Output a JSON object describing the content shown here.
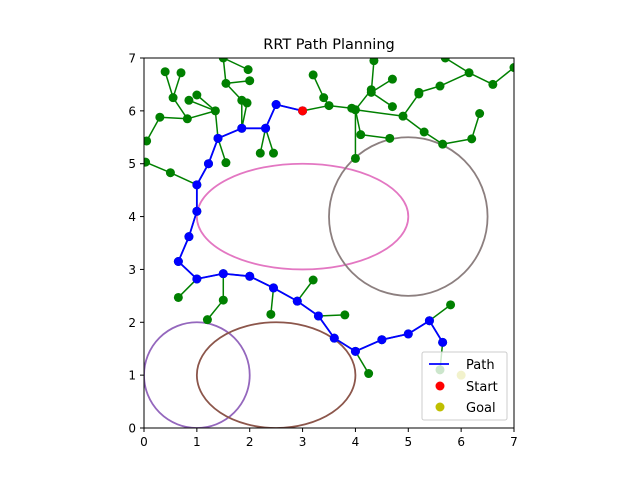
{
  "chart_data": {
    "type": "scatter",
    "title": "RRT Path Planning",
    "xlabel": "",
    "ylabel": "",
    "xlim": [
      0,
      7
    ],
    "ylim": [
      0,
      7
    ],
    "xticks": [
      "0",
      "1",
      "2",
      "3",
      "4",
      "5",
      "6",
      "7"
    ],
    "yticks": [
      "0",
      "1",
      "2",
      "3",
      "4",
      "5",
      "6",
      "7"
    ],
    "grid": false,
    "legend_position": "lower-right",
    "legend": [
      {
        "label": "Path",
        "kind": "line",
        "color": "#0000ff"
      },
      {
        "label": "Start",
        "kind": "marker",
        "color": "#ff0000"
      },
      {
        "label": "Goal",
        "kind": "marker",
        "color": "#bfbf00"
      }
    ],
    "obstacles": [
      {
        "shape": "ellipse",
        "cx": 3.0,
        "cy": 4.0,
        "rx": 2.0,
        "ry": 1.0,
        "color": "#e377c2"
      },
      {
        "shape": "circle",
        "cx": 5.0,
        "cy": 4.0,
        "rx": 1.5,
        "ry": 1.5,
        "color": "#8c7f7f"
      },
      {
        "shape": "circle",
        "cx": 1.0,
        "cy": 1.0,
        "rx": 1.0,
        "ry": 1.0,
        "color": "#9467bd"
      },
      {
        "shape": "ellipse",
        "cx": 2.5,
        "cy": 1.0,
        "rx": 1.5,
        "ry": 1.0,
        "color": "#8c564b"
      }
    ],
    "tree_color": "#008000",
    "path_color": "#0000ff",
    "tree_nodes": [
      [
        3.0,
        6.0
      ],
      [
        2.5,
        6.12
      ],
      [
        3.5,
        6.1
      ],
      [
        3.2,
        6.68
      ],
      [
        3.4,
        6.25
      ],
      [
        3.93,
        6.05
      ],
      [
        4.0,
        6.02
      ],
      [
        4.3,
        6.4
      ],
      [
        4.3,
        6.35
      ],
      [
        4.35,
        6.95
      ],
      [
        4.7,
        6.6
      ],
      [
        4.7,
        6.08
      ],
      [
        4.1,
        5.55
      ],
      [
        4.65,
        5.48
      ],
      [
        4.0,
        5.1
      ],
      [
        4.9,
        5.9
      ],
      [
        5.2,
        6.32
      ],
      [
        5.2,
        6.35
      ],
      [
        5.3,
        5.6
      ],
      [
        5.6,
        6.47
      ],
      [
        5.65,
        5.37
      ],
      [
        5.7,
        7.0
      ],
      [
        6.15,
        6.72
      ],
      [
        6.6,
        6.5
      ],
      [
        7.0,
        6.82
      ],
      [
        6.2,
        5.47
      ],
      [
        6.35,
        5.95
      ],
      [
        2.3,
        5.67
      ],
      [
        2.45,
        5.2
      ],
      [
        2.2,
        5.2
      ],
      [
        1.85,
        5.67
      ],
      [
        1.85,
        6.2
      ],
      [
        1.95,
        6.15
      ],
      [
        1.55,
        6.52
      ],
      [
        1.97,
        6.78
      ],
      [
        2.0,
        6.57
      ],
      [
        1.5,
        7.0
      ],
      [
        1.35,
        6.0
      ],
      [
        1.0,
        6.3
      ],
      [
        0.85,
        6.2
      ],
      [
        0.82,
        5.85
      ],
      [
        0.3,
        5.88
      ],
      [
        0.05,
        5.43
      ],
      [
        0.7,
        6.72
      ],
      [
        0.4,
        6.74
      ],
      [
        0.55,
        6.25
      ],
      [
        1.55,
        5.02
      ],
      [
        1.4,
        5.48
      ],
      [
        1.22,
        5.0
      ],
      [
        1.0,
        4.6
      ],
      [
        0.5,
        4.83
      ],
      [
        0.03,
        5.03
      ],
      [
        1.0,
        4.1
      ],
      [
        0.85,
        3.62
      ],
      [
        0.65,
        3.15
      ],
      [
        1.0,
        2.82
      ],
      [
        0.65,
        2.47
      ],
      [
        1.5,
        2.92
      ],
      [
        1.5,
        2.42
      ],
      [
        1.2,
        2.05
      ],
      [
        2.0,
        2.87
      ],
      [
        2.45,
        2.65
      ],
      [
        2.4,
        2.15
      ],
      [
        2.9,
        2.4
      ],
      [
        3.2,
        2.8
      ],
      [
        3.3,
        2.12
      ],
      [
        3.8,
        2.14
      ],
      [
        3.6,
        1.7
      ],
      [
        4.0,
        1.45
      ],
      [
        4.25,
        1.03
      ],
      [
        4.5,
        1.67
      ],
      [
        5.0,
        1.78
      ],
      [
        5.4,
        2.03
      ],
      [
        5.8,
        2.33
      ],
      [
        5.65,
        1.62
      ],
      [
        5.6,
        1.1
      ]
    ],
    "tree_edges": [
      [
        0,
        1
      ],
      [
        0,
        2
      ],
      [
        2,
        4
      ],
      [
        4,
        3
      ],
      [
        2,
        5
      ],
      [
        5,
        6
      ],
      [
        6,
        7
      ],
      [
        7,
        8
      ],
      [
        8,
        10
      ],
      [
        8,
        9
      ],
      [
        8,
        11
      ],
      [
        6,
        12
      ],
      [
        12,
        13
      ],
      [
        6,
        14
      ],
      [
        6,
        15
      ],
      [
        15,
        16
      ],
      [
        16,
        17
      ],
      [
        17,
        19
      ],
      [
        19,
        22
      ],
      [
        22,
        21
      ],
      [
        22,
        23
      ],
      [
        23,
        24
      ],
      [
        15,
        18
      ],
      [
        18,
        20
      ],
      [
        20,
        25
      ],
      [
        25,
        26
      ],
      [
        1,
        27
      ],
      [
        27,
        28
      ],
      [
        27,
        29
      ],
      [
        27,
        30
      ],
      [
        30,
        31
      ],
      [
        30,
        32
      ],
      [
        31,
        33
      ],
      [
        33,
        35
      ],
      [
        33,
        36
      ],
      [
        36,
        34
      ],
      [
        30,
        47
      ],
      [
        47,
        37
      ],
      [
        37,
        38
      ],
      [
        37,
        39
      ],
      [
        37,
        40
      ],
      [
        40,
        41
      ],
      [
        41,
        42
      ],
      [
        40,
        45
      ],
      [
        45,
        43
      ],
      [
        45,
        44
      ],
      [
        47,
        46
      ],
      [
        47,
        48
      ],
      [
        48,
        49
      ],
      [
        49,
        50
      ],
      [
        50,
        51
      ],
      [
        49,
        52
      ],
      [
        52,
        53
      ],
      [
        53,
        54
      ],
      [
        54,
        55
      ],
      [
        55,
        56
      ],
      [
        55,
        57
      ],
      [
        57,
        58
      ],
      [
        58,
        59
      ],
      [
        57,
        60
      ],
      [
        60,
        61
      ],
      [
        61,
        62
      ],
      [
        61,
        63
      ],
      [
        63,
        64
      ],
      [
        63,
        65
      ],
      [
        65,
        66
      ],
      [
        65,
        67
      ],
      [
        67,
        68
      ],
      [
        68,
        69
      ],
      [
        68,
        70
      ],
      [
        70,
        71
      ],
      [
        71,
        72
      ],
      [
        72,
        73
      ],
      [
        72,
        74
      ],
      [
        74,
        75
      ]
    ],
    "path": [
      [
        3.0,
        6.0
      ],
      [
        2.5,
        6.12
      ],
      [
        2.3,
        5.67
      ],
      [
        1.85,
        5.67
      ],
      [
        1.4,
        5.48
      ],
      [
        1.22,
        5.0
      ],
      [
        1.0,
        4.6
      ],
      [
        1.0,
        4.1
      ],
      [
        0.85,
        3.62
      ],
      [
        0.65,
        3.15
      ],
      [
        1.0,
        2.82
      ],
      [
        1.5,
        2.92
      ],
      [
        2.0,
        2.87
      ],
      [
        2.45,
        2.65
      ],
      [
        2.9,
        2.4
      ],
      [
        3.3,
        2.12
      ],
      [
        3.6,
        1.7
      ],
      [
        4.0,
        1.45
      ],
      [
        4.5,
        1.67
      ],
      [
        5.0,
        1.78
      ],
      [
        5.4,
        2.03
      ],
      [
        5.65,
        1.62
      ]
    ],
    "start": [
      3.0,
      6.0
    ],
    "goal": [
      6.0,
      1.0
    ]
  }
}
